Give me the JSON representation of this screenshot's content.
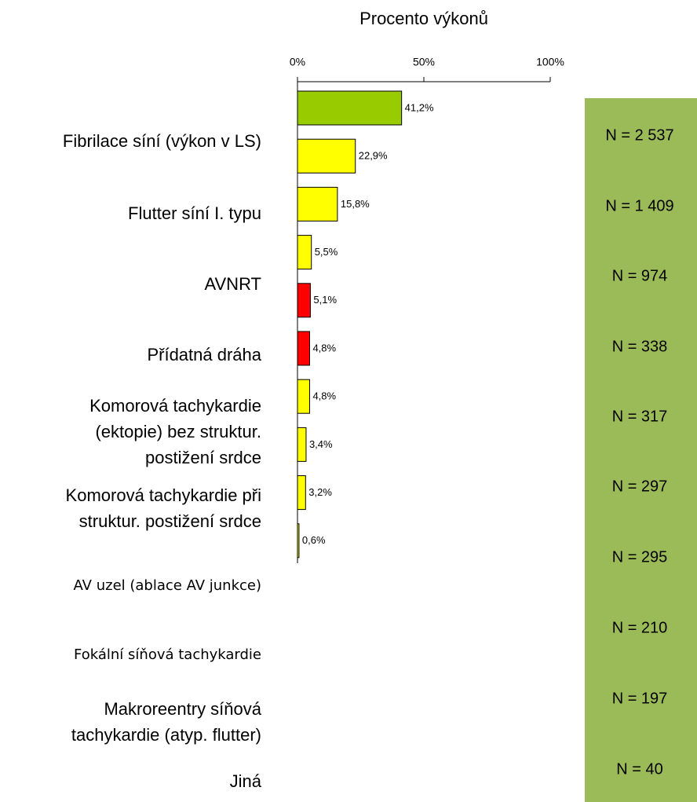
{
  "chart_data": {
    "type": "barh",
    "title": "Procento výkonů",
    "categories": [
      "Fibrilace síní (výkon v LS)",
      "Flutter síní I. typu",
      "AVNRT",
      "Přídatná dráha",
      "Komorová tachykardie\n(ektopie) bez struktur.\npostižení  srdce",
      "Komorová tachykardie při\nstruktur. postižení srdce",
      "AV uzel (ablace AV junkce)",
      "Fokální síňová tachykardie",
      "Makroreentry síňová\ntachykardie (atyp. flutter)",
      "Jiná"
    ],
    "values": [
      41.2,
      22.9,
      15.8,
      5.5,
      5.1,
      4.8,
      4.8,
      3.4,
      3.2,
      0.6
    ],
    "value_labels": [
      "41,2%",
      "22,9%",
      "15,8%",
      "5,5%",
      "5,1%",
      "4,8%",
      "4,8%",
      "3,4%",
      "3,2%",
      "0,6%"
    ],
    "colors": [
      "#99cc00",
      "#ffff00",
      "#ffff00",
      "#ffff00",
      "#ff0000",
      "#ff0000",
      "#ffff00",
      "#ffff00",
      "#ffff00",
      "#ffff00"
    ],
    "xlim": [
      0,
      100
    ],
    "xticks": [
      {
        "value": 0,
        "label": "0%"
      },
      {
        "value": 50,
        "label": "50%"
      },
      {
        "value": 100,
        "label": "100%"
      }
    ],
    "sample_sizes": [
      2537,
      1409,
      974,
      338,
      317,
      297,
      295,
      210,
      197,
      40
    ],
    "sample_size_labels": [
      "N = 2 537",
      "N = 1 409",
      "N = 974",
      "N = 338",
      "N = 317",
      "N = 297",
      "N = 295",
      "N = 210",
      "N = 197",
      "N = 40"
    ],
    "panel_color": "#9bbb59"
  }
}
